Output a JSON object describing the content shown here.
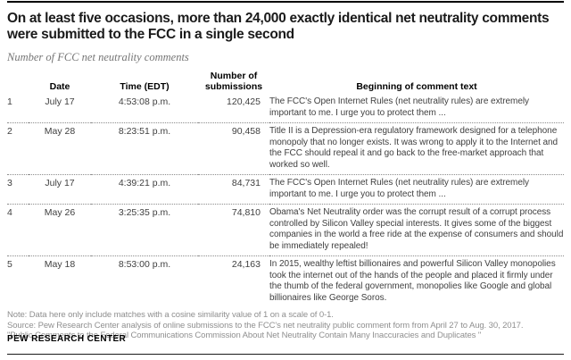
{
  "title": "On at least five occasions, more than 24,000 exactly identical net neutrality comments were submitted to the FCC in a single second",
  "subtitle": "Number of FCC net neutrality comments",
  "chart_data": {
    "type": "table",
    "title": "On at least five occasions, more than 24,000 exactly identical net neutrality comments were submitted to the FCC in a single second",
    "subtitle": "Number of FCC net neutrality comments",
    "columns": [
      "",
      "Date",
      "Time (EDT)",
      "Number of submissions",
      "Beginning of comment text"
    ],
    "rows": [
      {
        "rank": "1",
        "date": "July 17",
        "time": "4:53:08 p.m.",
        "submissions": "120,425",
        "comment": "The FCC's Open Internet Rules (net neutrality rules) are extremely important to me. I urge you to protect them ..."
      },
      {
        "rank": "2",
        "date": "May 28",
        "time": "8:23:51 p.m.",
        "submissions": "90,458",
        "comment": "Title II is a Depression-era regulatory framework designed for a telephone monopoly that no longer exists. It was wrong to apply it to the Internet and the FCC should repeal it and go back to the free-market approach that worked so well."
      },
      {
        "rank": "3",
        "date": "July 17",
        "time": "4:39:21 p.m.",
        "submissions": "84,731",
        "comment": "The FCC's Open Internet Rules (net neutrality rules) are extremely important to me. I urge you to protect them ..."
      },
      {
        "rank": "4",
        "date": "May 26",
        "time": "3:25:35 p.m.",
        "submissions": "74,810",
        "comment": "Obama's Net Neutrality order was the corrupt result of a corrupt process controlled by Silicon Valley special interests. It gives some of the biggest companies in the world a free ride at the expense of consumers and should be immediately repealed!"
      },
      {
        "rank": "5",
        "date": "May 18",
        "time": "8:53:00 p.m.",
        "submissions": "24,163",
        "comment": "In 2015, wealthy leftist billionaires and powerful Silicon Valley monopolies took the internet out of the hands of the people and placed it firmly under the thumb of the federal government, monopolies like Google and global billionaires like George Soros."
      }
    ]
  },
  "note": "Note: Data here only include matches with a cosine similarity value of 1 on a scale of 0-1.",
  "source_line1": "Source: Pew Research Center analysis of online submissions to the FCC's net neutrality public comment form from April 27 to Aug. 30, 2017.",
  "source_line2": "\"Public Comments to the Federal Communications Commission About Net Neutrality Contain Many Inaccuracies and Duplicates \"",
  "branding": "PEW RESEARCH CENTER",
  "colors": {
    "top_rule": "#000000",
    "bottom_rule": "#1a1a1a",
    "title_text": "#1a1a1a",
    "subtitle_text": "#757575",
    "body_text": "#404040",
    "muted_text": "#8f8f8f",
    "row_divider": "#8c8c8c"
  }
}
